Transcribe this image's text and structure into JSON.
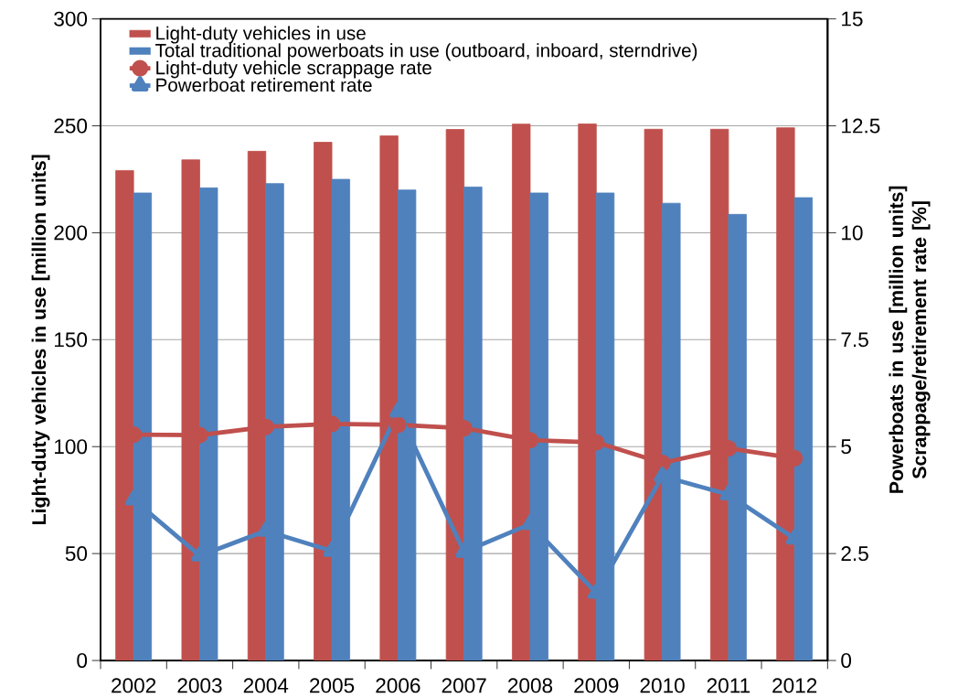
{
  "chart_data": {
    "type": "bar",
    "categories": [
      "2002",
      "2003",
      "2004",
      "2005",
      "2006",
      "2007",
      "2008",
      "2009",
      "2010",
      "2011",
      "2012"
    ],
    "ylabel": "Light-duty vehicles in use [million units]",
    "y2label": "Powerboats in use [million units] Scrappage/retirement rate [%]",
    "ylim": [
      0,
      300
    ],
    "yticks": [
      0,
      50,
      100,
      150,
      200,
      250,
      300
    ],
    "y2lim": [
      0,
      15
    ],
    "y2ticks": [
      0,
      2.5,
      5,
      7.5,
      10,
      12.5,
      15
    ],
    "grid": "y",
    "legend": "top left",
    "series": [
      {
        "name": "Light-duty vehicles in use",
        "color": "#c0504d",
        "values": [
          229.1,
          234.1,
          238.1,
          242.3,
          245.3,
          248.3,
          250.8,
          250.9,
          248.4,
          248.4,
          249.1
        ]
      },
      {
        "name": "Total traditional powerboats in use (outboard, inboard, sterndrive)",
        "type": "bar",
        "axis": "y2",
        "color": "#4f81bd",
        "values": [
          10.93,
          11.05,
          11.15,
          11.25,
          11.0,
          11.07,
          10.93,
          10.93,
          10.69,
          10.43,
          10.82
        ]
      },
      {
        "name": "Light-duty vehicle scrappage rate",
        "type": "line",
        "axis": "y2",
        "color": "#c0504d",
        "marker": "circle",
        "values": [
          5.28,
          5.27,
          5.46,
          5.53,
          5.51,
          5.43,
          5.15,
          5.1,
          4.62,
          4.96,
          4.73
        ]
      },
      {
        "name": "Powerboat retirement rate",
        "type": "line",
        "axis": "y2",
        "color": "#4f81bd",
        "marker": "triangle",
        "values": [
          3.76,
          2.45,
          3.03,
          2.56,
          5.82,
          2.54,
          3.19,
          1.58,
          4.31,
          3.88,
          2.85
        ]
      }
    ]
  }
}
